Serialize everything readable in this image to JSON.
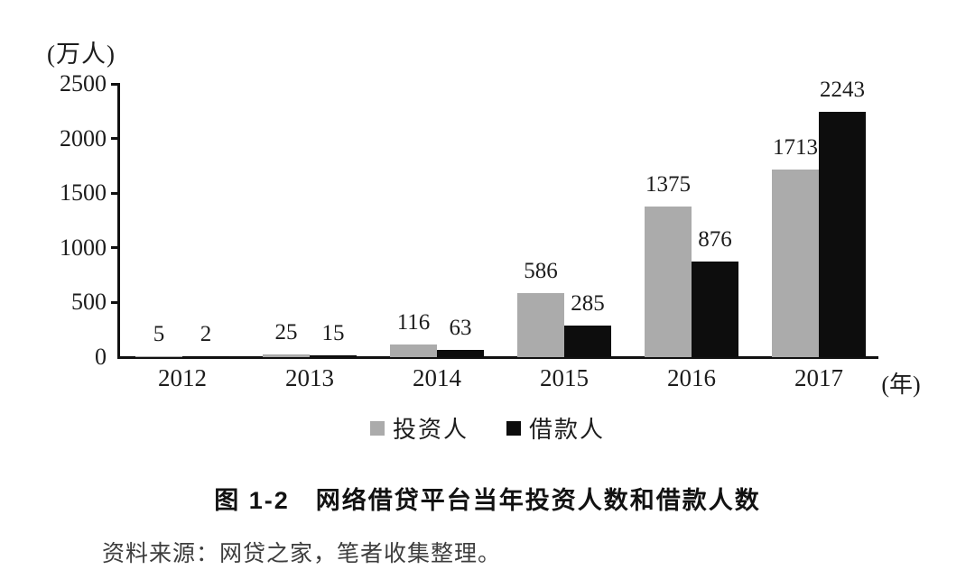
{
  "chart_data": {
    "type": "bar",
    "title": "图 1-2　网络借贷平台当年投资人数和借款人数",
    "y_unit_label": "(万人)",
    "x_unit_label": "(年)",
    "categories": [
      "2012",
      "2013",
      "2014",
      "2015",
      "2016",
      "2017"
    ],
    "series": [
      {
        "name": "投资人",
        "color": "#ababab",
        "values": [
          5,
          25,
          116,
          586,
          1375,
          1713
        ]
      },
      {
        "name": "借款人",
        "color": "#0d0d0d",
        "values": [
          2,
          15,
          63,
          285,
          876,
          2243
        ]
      }
    ],
    "ylim": [
      0,
      2500
    ],
    "yticks": [
      0,
      500,
      1000,
      1500,
      2000,
      2500
    ],
    "grid": false,
    "legend_position": "bottom",
    "value_labels_shown": true
  },
  "caption": "图 1-2　网络借贷平台当年投资人数和借款人数",
  "source": "资料来源：网贷之家，笔者收集整理。"
}
